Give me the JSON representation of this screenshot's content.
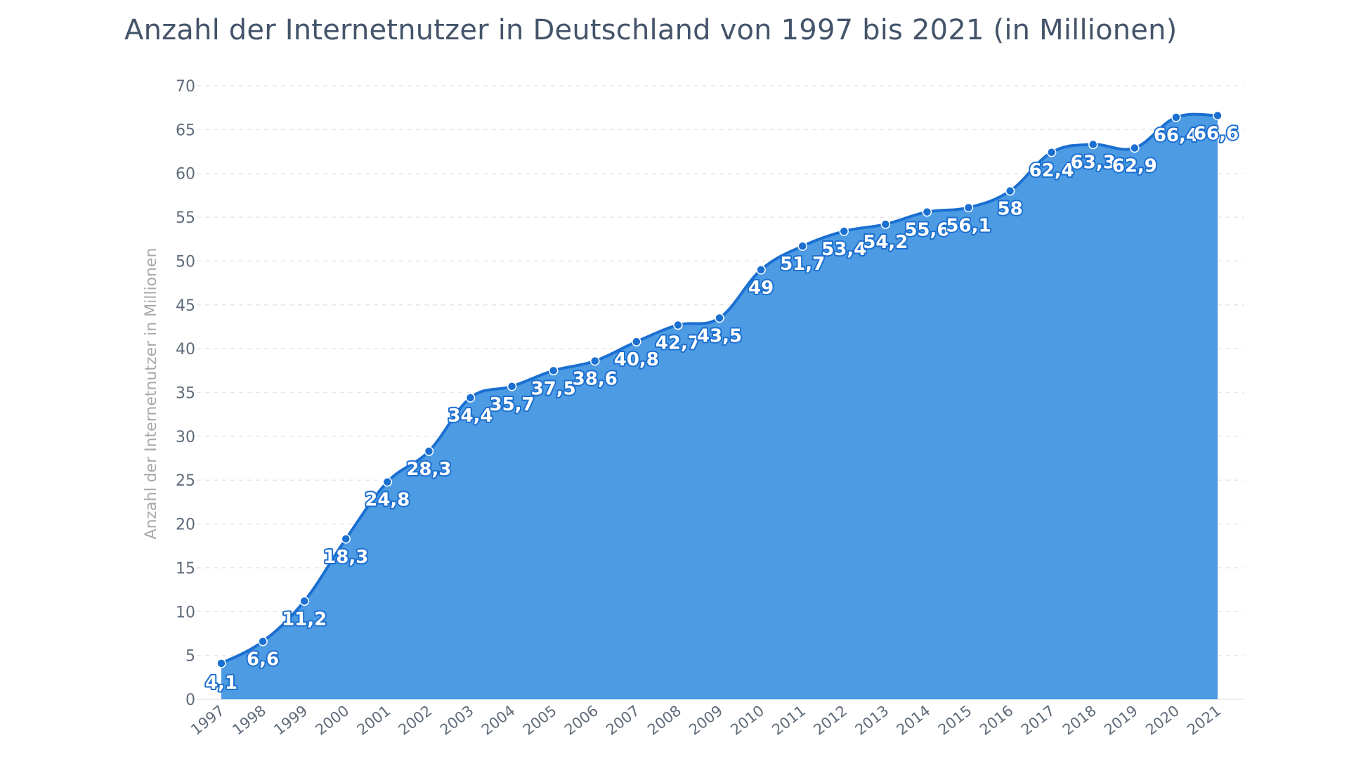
{
  "chart_data": {
    "type": "area",
    "title": "Anzahl der Internetnutzer in Deutschland von 1997 bis 2021 (in Millionen)",
    "xlabel": "",
    "ylabel": "Anzahl der Internetnutzer in Millionen",
    "categories": [
      "1997",
      "1998",
      "1999",
      "2000",
      "2001",
      "2002",
      "2003",
      "2004",
      "2005",
      "2006",
      "2007",
      "2008",
      "2009",
      "2010",
      "2011",
      "2012",
      "2013",
      "2014",
      "2015",
      "2016",
      "2017",
      "2018",
      "2019",
      "2020",
      "2021"
    ],
    "values": [
      4.1,
      6.6,
      11.2,
      18.3,
      24.8,
      28.3,
      34.4,
      35.7,
      37.5,
      38.6,
      40.8,
      42.7,
      43.5,
      49,
      51.7,
      53.4,
      54.2,
      55.6,
      56.1,
      58,
      62.4,
      63.3,
      62.9,
      66.4,
      66.6
    ],
    "value_labels": [
      "4,1",
      "6,6",
      "11,2",
      "18,3",
      "24,8",
      "28,3",
      "34,4",
      "35,7",
      "37,5",
      "38,6",
      "40,8",
      "42,7",
      "43,5",
      "49",
      "51,7",
      "53,4",
      "54,2",
      "55,6",
      "56,1",
      "58",
      "62,4",
      "63,3",
      "62,9",
      "66,4",
      "66,6"
    ],
    "yticks": [
      "0",
      "5",
      "10",
      "15",
      "20",
      "25",
      "30",
      "35",
      "40",
      "45",
      "50",
      "55",
      "60",
      "65",
      "70"
    ],
    "ylim": [
      0,
      70
    ],
    "grid": true,
    "legend": "none",
    "colors": {
      "area_fill": "#4c9be3",
      "line": "#1a6fd1",
      "marker": "#1a6fd1",
      "grid": "#e6e6e6",
      "title": "#44546a",
      "tick": "#5f6b7a",
      "ylabel": "#a9a9a9",
      "label_text": "#ffffff",
      "label_outline": "#1d6fcf"
    }
  }
}
